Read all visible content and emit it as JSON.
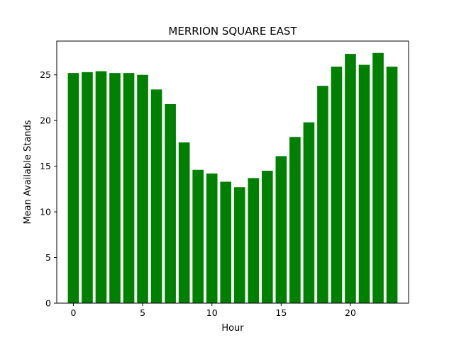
{
  "chart_data": {
    "type": "bar",
    "title": "MERRION SQUARE EAST",
    "xlabel": "Hour",
    "ylabel": "Mean Available Stands",
    "categories": [
      0,
      1,
      2,
      3,
      4,
      5,
      6,
      7,
      8,
      9,
      10,
      11,
      12,
      13,
      14,
      15,
      16,
      17,
      18,
      19,
      20,
      21,
      22,
      23
    ],
    "values": [
      25.2,
      25.3,
      25.4,
      25.2,
      25.2,
      25.0,
      23.4,
      21.8,
      17.6,
      14.6,
      14.2,
      13.3,
      12.7,
      13.7,
      14.5,
      16.1,
      18.2,
      19.8,
      23.8,
      25.9,
      27.3,
      26.1,
      27.4,
      25.9
    ],
    "xlim": [
      -1.2,
      24.2
    ],
    "ylim": [
      0,
      28.7
    ],
    "xticks": [
      0,
      5,
      10,
      15,
      20
    ],
    "yticks": [
      0,
      5,
      10,
      15,
      20,
      25
    ],
    "bar_color": "#008000",
    "grid": false,
    "legend": false
  }
}
